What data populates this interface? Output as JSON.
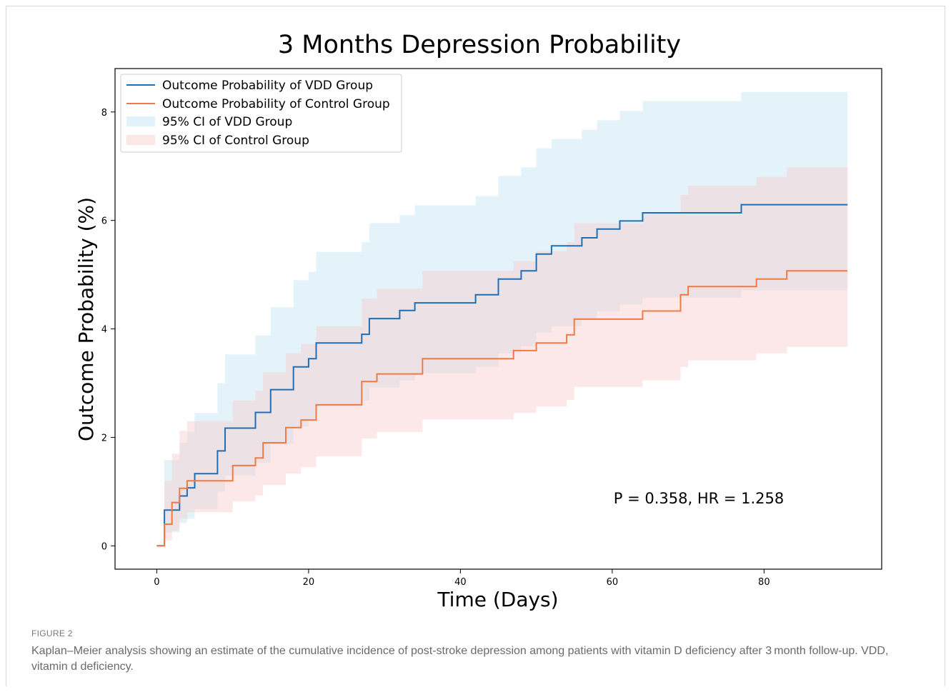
{
  "chart_data": {
    "type": "line",
    "title": "3 Months Depression Probability",
    "xlabel": "Time (Days)",
    "ylabel": "Outcome Probability (%)",
    "xlim": [
      -5.5,
      95.5
    ],
    "ylim": [
      -0.43,
      8.8
    ],
    "xticks": [
      0,
      20,
      40,
      60,
      80
    ],
    "yticks": [
      0,
      2,
      4,
      6,
      8
    ],
    "legend_position": "upper-left",
    "annotation": "P = 0.358, HR = 1.258",
    "series": [
      {
        "name": "Outcome Probability of VDD Group",
        "color": "#1f6fb4",
        "x": [
          0,
          1,
          2,
          3,
          4,
          5,
          8,
          9,
          11,
          13,
          14,
          15,
          17,
          18,
          19,
          20,
          21,
          26,
          27,
          28,
          31,
          32,
          33,
          34,
          41,
          42,
          44,
          45,
          47,
          48,
          49,
          50,
          51,
          52,
          55,
          56,
          57,
          58,
          61,
          63,
          64,
          76,
          77,
          91
        ],
        "y": [
          0,
          0.66,
          0.66,
          0.92,
          1.07,
          1.33,
          1.75,
          2.17,
          2.17,
          2.46,
          2.46,
          2.88,
          2.88,
          3.3,
          3.3,
          3.45,
          3.74,
          3.74,
          3.9,
          4.19,
          4.19,
          4.34,
          4.34,
          4.48,
          4.48,
          4.63,
          4.63,
          4.92,
          4.92,
          5.07,
          5.07,
          5.38,
          5.38,
          5.53,
          5.53,
          5.68,
          5.68,
          5.84,
          5.99,
          5.99,
          6.14,
          6.14,
          6.29,
          6.29
        ]
      },
      {
        "name": "Outcome Probability of Control Group",
        "color": "#f07a45",
        "x": [
          0,
          1,
          2,
          3,
          4,
          5,
          9,
          10,
          12,
          13,
          14,
          15,
          17,
          18,
          19,
          20,
          21,
          24,
          27,
          28,
          29,
          33,
          35,
          46,
          47,
          49,
          50,
          53,
          54,
          55,
          63,
          64,
          69,
          70,
          78,
          79,
          81,
          83,
          91
        ],
        "y": [
          0,
          0.4,
          0.8,
          1.06,
          1.2,
          1.2,
          1.2,
          1.48,
          1.48,
          1.62,
          1.9,
          1.9,
          2.18,
          2.18,
          2.32,
          2.32,
          2.6,
          2.6,
          3.03,
          3.03,
          3.17,
          3.17,
          3.45,
          3.45,
          3.6,
          3.6,
          3.74,
          3.74,
          3.89,
          4.18,
          4.18,
          4.33,
          4.63,
          4.78,
          4.78,
          4.92,
          4.92,
          5.07,
          5.07
        ]
      }
    ],
    "bands": [
      {
        "name": "95% CI of VDD Group",
        "color": "#bfe3f3",
        "x": [
          0,
          1,
          2,
          3,
          4,
          5,
          8,
          9,
          11,
          13,
          14,
          15,
          17,
          18,
          19,
          20,
          21,
          26,
          27,
          28,
          31,
          32,
          33,
          34,
          41,
          42,
          44,
          45,
          47,
          48,
          49,
          50,
          51,
          52,
          55,
          56,
          57,
          58,
          61,
          63,
          64,
          76,
          77,
          91
        ],
        "upper": [
          0,
          1.58,
          1.58,
          1.9,
          2.1,
          2.45,
          3.0,
          3.53,
          3.53,
          3.88,
          3.88,
          4.4,
          4.4,
          4.9,
          4.9,
          5.05,
          5.42,
          5.42,
          5.6,
          5.95,
          5.95,
          6.1,
          6.1,
          6.28,
          6.28,
          6.45,
          6.45,
          6.82,
          6.82,
          6.98,
          6.98,
          7.33,
          7.33,
          7.5,
          7.5,
          7.67,
          7.67,
          7.85,
          8.02,
          8.02,
          8.2,
          8.2,
          8.37,
          8.37
        ],
        "lower": [
          0,
          0.25,
          0.25,
          0.42,
          0.5,
          0.68,
          1.0,
          1.3,
          1.3,
          1.53,
          1.53,
          1.88,
          1.88,
          2.2,
          2.2,
          2.3,
          2.56,
          2.56,
          2.68,
          2.92,
          2.92,
          3.05,
          3.05,
          3.18,
          3.18,
          3.3,
          3.3,
          3.55,
          3.55,
          3.68,
          3.68,
          3.93,
          3.93,
          4.05,
          4.05,
          4.18,
          4.18,
          4.32,
          4.45,
          4.45,
          4.58,
          4.58,
          4.71,
          4.71
        ]
      },
      {
        "name": "95% CI of Control Group",
        "color": "#f9c9c9",
        "x": [
          0,
          1,
          2,
          3,
          4,
          5,
          9,
          10,
          12,
          13,
          14,
          15,
          17,
          18,
          19,
          20,
          21,
          24,
          27,
          28,
          29,
          33,
          35,
          46,
          47,
          49,
          50,
          53,
          54,
          55,
          63,
          64,
          69,
          70,
          78,
          79,
          81,
          83,
          91
        ],
        "upper": [
          0,
          1.2,
          1.7,
          2.12,
          2.3,
          2.3,
          2.3,
          2.68,
          2.68,
          2.86,
          3.2,
          3.2,
          3.55,
          3.55,
          3.72,
          3.72,
          4.05,
          4.05,
          4.56,
          4.56,
          4.74,
          4.74,
          5.07,
          5.07,
          5.25,
          5.25,
          5.43,
          5.43,
          5.6,
          5.95,
          5.95,
          6.13,
          6.47,
          6.64,
          6.64,
          6.8,
          6.8,
          6.98,
          6.98
        ],
        "lower": [
          0,
          0.1,
          0.28,
          0.5,
          0.62,
          0.62,
          0.62,
          0.82,
          0.82,
          0.93,
          1.12,
          1.12,
          1.33,
          1.33,
          1.45,
          1.45,
          1.65,
          1.65,
          1.98,
          1.98,
          2.1,
          2.1,
          2.33,
          2.33,
          2.45,
          2.45,
          2.57,
          2.57,
          2.69,
          2.93,
          2.93,
          3.05,
          3.3,
          3.42,
          3.42,
          3.55,
          3.55,
          3.67,
          3.67
        ]
      }
    ]
  },
  "caption": {
    "label": "FIGURE 2",
    "text": "Kaplan–Meier analysis showing an estimate of the cumulative incidence of post-stroke depression among patients with vitamin D deficiency after 3 month follow-up. VDD, vitamin d deficiency."
  }
}
